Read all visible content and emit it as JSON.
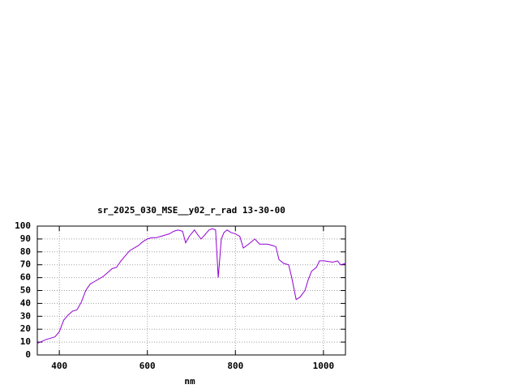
{
  "chart_data": {
    "type": "line",
    "title": "sr_2025_030_MSE__y02_r_rad 13-30-00",
    "x_label": "nm",
    "x": [
      350,
      370,
      390,
      400,
      410,
      420,
      430,
      440,
      450,
      460,
      470,
      480,
      490,
      500,
      510,
      520,
      530,
      540,
      550,
      560,
      570,
      580,
      590,
      600,
      610,
      620,
      630,
      640,
      650,
      660,
      670,
      680,
      687,
      695,
      707,
      715,
      722,
      730,
      740,
      748,
      755,
      761,
      768,
      774,
      781,
      790,
      800,
      810,
      818,
      830,
      844,
      855,
      865,
      873,
      884,
      892,
      899,
      910,
      921,
      928,
      938,
      947,
      958,
      965,
      973,
      984,
      991,
      1002,
      1021,
      1032,
      1039,
      1050
    ],
    "values": [
      9,
      12,
      14,
      18,
      27,
      31,
      34,
      35,
      41,
      50,
      55,
      57,
      59,
      61,
      64,
      67,
      68,
      73,
      77,
      81,
      83,
      85,
      88,
      90,
      91,
      91,
      92,
      93,
      94,
      96,
      97,
      96,
      87,
      92,
      97,
      93,
      90,
      93,
      97,
      98,
      97,
      60,
      90,
      95,
      97,
      95,
      94,
      92,
      83,
      86,
      90,
      86,
      86,
      86,
      85,
      84,
      74,
      71,
      70,
      60,
      43,
      45,
      50,
      58,
      65,
      68,
      73,
      73,
      72,
      73,
      70,
      71
    ],
    "color": "#9400d3",
    "xlim": [
      350,
      1050
    ],
    "xticks": [
      400,
      600,
      800,
      1000
    ],
    "ylim": [
      0,
      100
    ],
    "yticks": [
      0,
      10,
      20,
      30,
      40,
      50,
      60,
      70,
      80,
      90,
      100
    ],
    "grid": true
  }
}
